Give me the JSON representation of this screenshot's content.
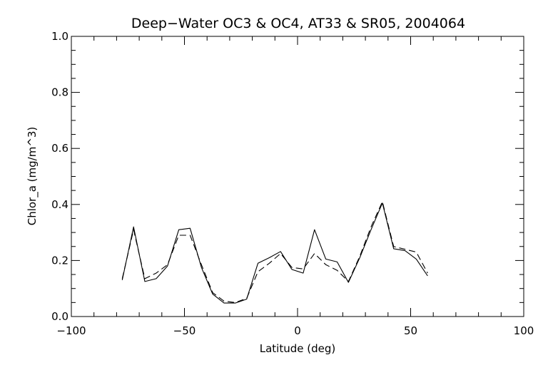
{
  "chart_data": {
    "type": "line",
    "title": "Deep−Water OC3 & OC4, AT33 & SR05, 2004064",
    "xlabel": "Latitude (deg)",
    "ylabel": "Chlor_a (mg/m^3)",
    "xlim": [
      -100,
      100
    ],
    "ylim": [
      0.0,
      1.0
    ],
    "xticks": [
      -100,
      -50,
      0,
      50,
      100
    ],
    "xtick_labels": [
      "−100",
      "−50",
      "0",
      "50",
      "100"
    ],
    "yticks": [
      0.0,
      0.2,
      0.4,
      0.6,
      0.8,
      1.0
    ],
    "ytick_labels": [
      "0.0",
      "0.2",
      "0.4",
      "0.6",
      "0.8",
      "1.0"
    ],
    "grid": false,
    "x": [
      -77.5,
      -72.5,
      -67.5,
      -62.5,
      -57.5,
      -52.5,
      -47.5,
      -42.5,
      -37.5,
      -32.5,
      -27.5,
      -22.5,
      -17.5,
      -12.5,
      -7.5,
      -2.5,
      2.5,
      7.5,
      12.5,
      17.5,
      22.5,
      27.5,
      32.5,
      37.5,
      42.5,
      47.5,
      52.5,
      57.5
    ],
    "series": [
      {
        "style": "solid",
        "color": "#000000",
        "values": [
          0.13,
          0.32,
          0.125,
          0.135,
          0.18,
          0.31,
          0.315,
          0.175,
          0.08,
          0.048,
          0.048,
          0.062,
          0.19,
          0.21,
          0.232,
          0.168,
          0.155,
          0.31,
          0.205,
          0.195,
          0.122,
          0.21,
          0.31,
          0.405,
          0.242,
          0.235,
          0.205,
          0.145
        ]
      },
      {
        "style": "dashed",
        "color": "#000000",
        "values": [
          0.135,
          0.31,
          0.135,
          0.155,
          0.185,
          0.29,
          0.29,
          0.185,
          0.085,
          0.055,
          0.05,
          0.065,
          0.16,
          0.19,
          0.225,
          0.175,
          0.17,
          0.225,
          0.185,
          0.165,
          0.125,
          0.215,
          0.32,
          0.41,
          0.25,
          0.24,
          0.23,
          0.155
        ]
      }
    ]
  }
}
